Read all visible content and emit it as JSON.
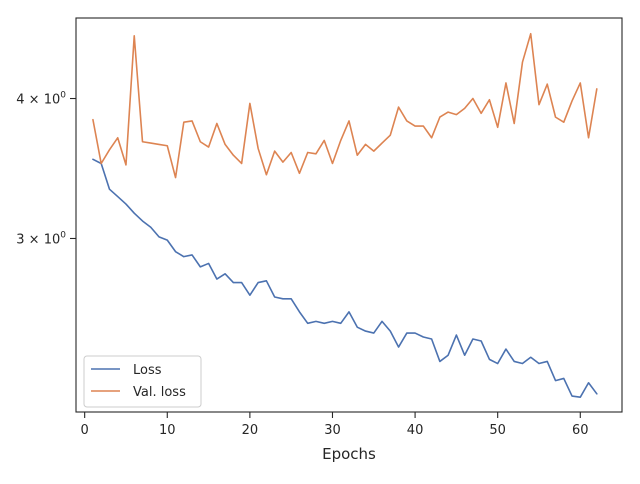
{
  "chart_data": {
    "type": "line",
    "title": "",
    "xlabel": "Epochs",
    "ylabel": "",
    "yscale": "log",
    "xlim": [
      -1.05,
      65.05
    ],
    "ylim": [
      2.1,
      4.72
    ],
    "x_ticks": [
      {
        "value": 0,
        "label": "0"
      },
      {
        "value": 10,
        "label": "10"
      },
      {
        "value": 20,
        "label": "20"
      },
      {
        "value": 30,
        "label": "30"
      },
      {
        "value": 40,
        "label": "40"
      },
      {
        "value": 50,
        "label": "50"
      },
      {
        "value": 60,
        "label": "60"
      }
    ],
    "y_ticks": [
      {
        "value": 3,
        "base": "3 × 10",
        "exp": "0"
      },
      {
        "value": 4,
        "base": "4 × 10",
        "exp": "0"
      }
    ],
    "grid": false,
    "legend_position": "lower-left",
    "x": [
      1,
      2,
      3,
      4,
      5,
      6,
      7,
      8,
      9,
      10,
      11,
      12,
      13,
      14,
      15,
      16,
      17,
      18,
      19,
      20,
      21,
      22,
      23,
      24,
      25,
      26,
      27,
      28,
      29,
      30,
      31,
      32,
      33,
      34,
      35,
      36,
      37,
      38,
      39,
      40,
      41,
      42,
      43,
      44,
      45,
      46,
      47,
      48,
      49,
      50,
      51,
      52,
      53,
      54,
      55,
      56,
      57,
      58,
      59,
      60,
      61,
      62
    ],
    "series": [
      {
        "name": "Loss",
        "color": "#4c72b0",
        "values": [
          3.53,
          3.5,
          3.32,
          3.27,
          3.22,
          3.16,
          3.11,
          3.07,
          3.01,
          2.99,
          2.92,
          2.89,
          2.9,
          2.83,
          2.85,
          2.76,
          2.79,
          2.74,
          2.74,
          2.67,
          2.74,
          2.75,
          2.66,
          2.65,
          2.65,
          2.58,
          2.52,
          2.53,
          2.52,
          2.53,
          2.52,
          2.58,
          2.5,
          2.48,
          2.47,
          2.53,
          2.48,
          2.4,
          2.47,
          2.47,
          2.45,
          2.44,
          2.33,
          2.36,
          2.46,
          2.36,
          2.44,
          2.43,
          2.34,
          2.32,
          2.39,
          2.33,
          2.32,
          2.35,
          2.32,
          2.33,
          2.24,
          2.25,
          2.17,
          2.165,
          2.23,
          2.18
        ]
      },
      {
        "name": "Val. loss",
        "color": "#dd8452",
        "values": [
          3.83,
          3.5,
          3.6,
          3.69,
          3.49,
          4.55,
          3.66,
          3.65,
          3.64,
          3.63,
          3.4,
          3.81,
          3.82,
          3.66,
          3.62,
          3.8,
          3.64,
          3.56,
          3.5,
          3.96,
          3.61,
          3.42,
          3.59,
          3.51,
          3.58,
          3.43,
          3.58,
          3.57,
          3.67,
          3.5,
          3.67,
          3.82,
          3.56,
          3.64,
          3.59,
          3.65,
          3.71,
          3.93,
          3.82,
          3.78,
          3.78,
          3.69,
          3.85,
          3.89,
          3.87,
          3.92,
          4.0,
          3.88,
          3.99,
          3.77,
          4.13,
          3.8,
          4.31,
          4.57,
          3.95,
          4.12,
          3.85,
          3.81,
          3.98,
          4.13,
          3.69,
          4.08
        ]
      }
    ]
  }
}
